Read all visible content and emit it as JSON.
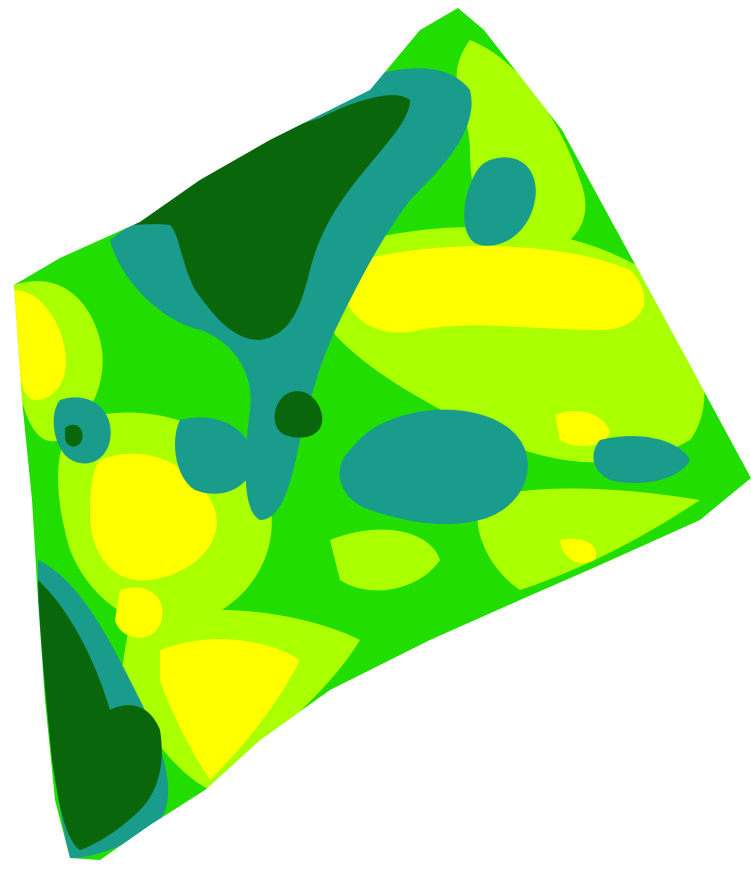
{
  "map": {
    "type": "zonal-field-map",
    "zone_colors": {
      "very_high": "#ffff00",
      "high": "#aaff00",
      "medium": "#22dd00",
      "low": "#1a9c8c",
      "very_low": "#0a660a"
    },
    "background": "#ffffff"
  }
}
